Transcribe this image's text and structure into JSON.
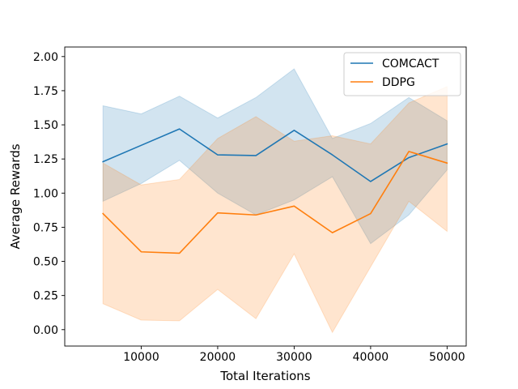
{
  "chart_data": {
    "type": "line",
    "xlabel": "Total Iterations",
    "ylabel": "Average Rewards",
    "xlim": [
      0,
      52500
    ],
    "ylim": [
      -0.12,
      2.07
    ],
    "x_ticks": [
      10000,
      20000,
      30000,
      40000,
      50000
    ],
    "x_tick_labels": [
      "10000",
      "20000",
      "30000",
      "40000",
      "50000"
    ],
    "y_ticks": [
      0.0,
      0.25,
      0.5,
      0.75,
      1.0,
      1.25,
      1.5,
      1.75,
      2.0
    ],
    "y_tick_labels": [
      "0.00",
      "0.25",
      "0.50",
      "0.75",
      "1.00",
      "1.25",
      "1.50",
      "1.75",
      "2.00"
    ],
    "grid": false,
    "legend_position": "upper right",
    "x": [
      5000,
      10000,
      15000,
      20000,
      25000,
      30000,
      35000,
      40000,
      45000,
      50000
    ],
    "series": [
      {
        "name": "COMCACT",
        "color": "#1f77b4",
        "values": [
          1.23,
          1.35,
          1.47,
          1.28,
          1.275,
          1.46,
          1.28,
          1.085,
          1.26,
          1.36
        ],
        "lower": [
          0.94,
          1.07,
          1.24,
          1.0,
          0.84,
          0.95,
          1.12,
          0.63,
          0.84,
          1.17
        ],
        "upper": [
          1.64,
          1.58,
          1.71,
          1.55,
          1.7,
          1.91,
          1.4,
          1.51,
          1.7,
          1.53
        ]
      },
      {
        "name": "DDPG",
        "color": "#ff7f0e",
        "values": [
          0.85,
          0.57,
          0.56,
          0.855,
          0.84,
          0.905,
          0.71,
          0.85,
          1.305,
          1.22
        ],
        "lower": [
          0.19,
          0.07,
          0.065,
          0.295,
          0.08,
          0.555,
          -0.02,
          0.46,
          0.94,
          0.72
        ],
        "upper": [
          1.22,
          1.06,
          1.1,
          1.4,
          1.56,
          1.38,
          1.42,
          1.36,
          1.66,
          1.78
        ]
      }
    ]
  }
}
